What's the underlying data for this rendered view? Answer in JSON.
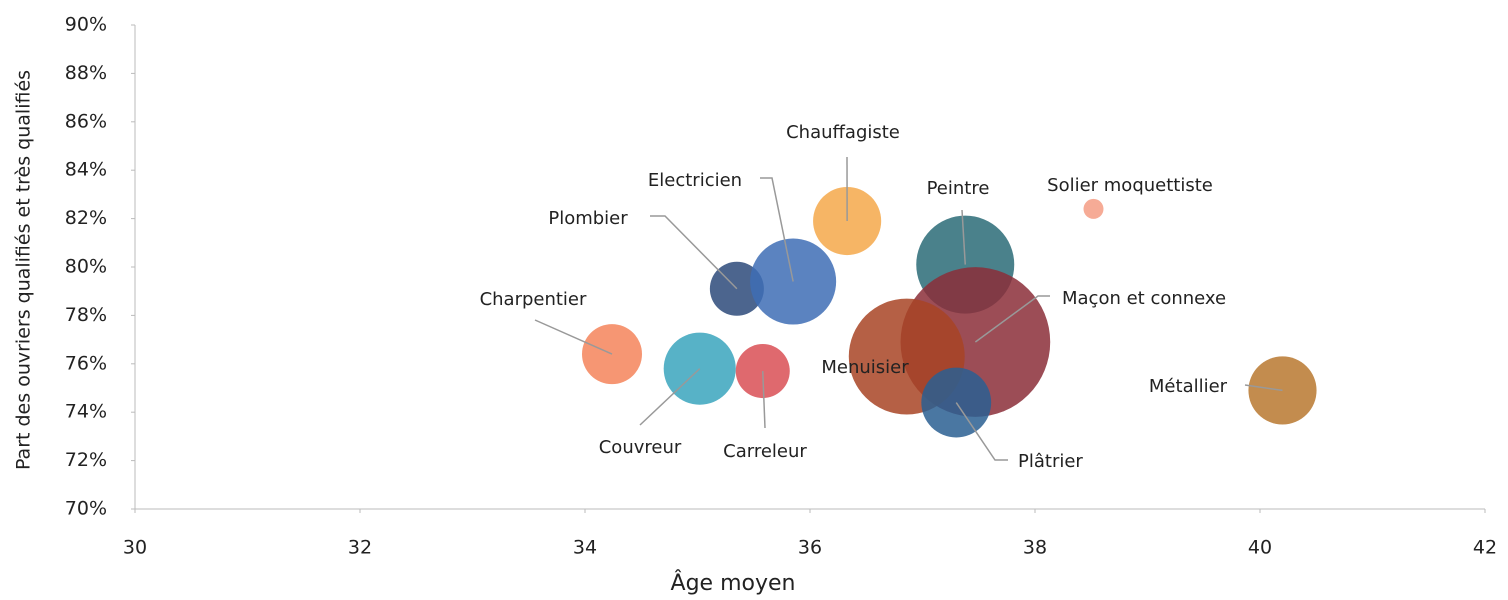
{
  "chart_data": {
    "type": "scatter",
    "xlabel": "Âge moyen",
    "ylabel": "Part des ouvriers qualifiés  et très qualifiés",
    "xlim": [
      30,
      42
    ],
    "xticks": [
      30,
      32,
      34,
      36,
      38,
      40,
      42
    ],
    "ylim": [
      70,
      90
    ],
    "yticks": [
      {
        "value": 70,
        "label": "70%"
      },
      {
        "value": 72,
        "label": "72%"
      },
      {
        "value": 74,
        "label": "74%"
      },
      {
        "value": 76,
        "label": "76%"
      },
      {
        "value": 78,
        "label": "78%"
      },
      {
        "value": 80,
        "label": "80%"
      },
      {
        "value": 82,
        "label": "82%"
      },
      {
        "value": 84,
        "label": "84%"
      },
      {
        "value": 86,
        "label": "86%"
      },
      {
        "value": 88,
        "label": "88%"
      },
      {
        "value": 90,
        "label": "90%"
      }
    ],
    "categories": [
      "Charpentier",
      "Couvreur",
      "Carreleur",
      "Plombier",
      "Electricien",
      "Chauffagiste",
      "Peintre",
      "Solier  moquettiste",
      "Maçon  et connexe",
      "Menuisier",
      "Plâtrier",
      "Métallier"
    ],
    "x": [
      34.24,
      35.02,
      35.58,
      35.35,
      35.85,
      36.33,
      37.38,
      38.52,
      37.47,
      36.86,
      37.3,
      40.2
    ],
    "values": [
      76.4,
      75.8,
      75.7,
      79.1,
      79.4,
      81.9,
      80.1,
      82.4,
      76.9,
      76.3,
      74.4,
      74.9
    ],
    "sizes": [
      9,
      13,
      7.3,
      7.3,
      18.5,
      11.6,
      24,
      1,
      56,
      33.6,
      12.2,
      11.6
    ],
    "colors": [
      "#f4845a",
      "#3aa5bd",
      "#d94f55",
      "#2d4a7a",
      "#3e6db5",
      "#f5a84a",
      "#2a6b77",
      "#f59c84",
      "#8b2e38",
      "#a84424",
      "#2a5f92",
      "#b8782f"
    ]
  }
}
